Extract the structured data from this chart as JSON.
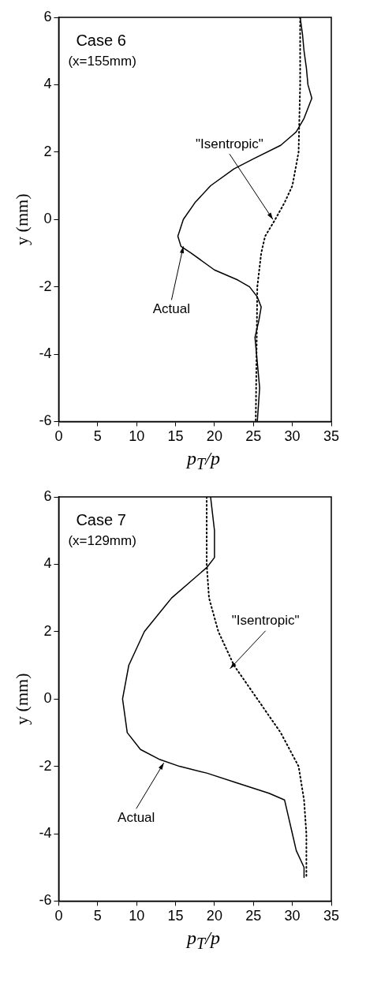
{
  "chart_data": [
    {
      "type": "line",
      "xlabel": "p$_{T}$/p",
      "ylabel": "y (mm)",
      "xlim": [
        0,
        35
      ],
      "ylim": [
        -6,
        6
      ],
      "xticks": [
        0,
        5,
        10,
        15,
        20,
        25,
        30,
        35
      ],
      "yticks": [
        -6,
        -4,
        -2,
        0,
        2,
        4,
        6
      ],
      "grid": false,
      "legend": false,
      "annotations": [
        "Case 6",
        "(x=155mm)",
        {
          "text": "\"Isentropic\"",
          "x": 27.5,
          "y": 0
        },
        {
          "text": "Actual",
          "x": 16,
          "y": -0.8
        }
      ],
      "series": [
        {
          "color": "#000000",
          "line_style": "solid",
          "x": [
            31,
            31.3,
            31.5,
            31.8,
            32,
            32.5,
            31.5,
            30.5,
            30,
            28.5,
            25,
            22.5,
            19.5,
            17.5,
            16,
            15.3,
            15.7,
            17,
            20,
            23,
            24.5,
            25.5,
            26,
            25.7,
            25.2,
            25.4,
            25.8,
            25.5
          ],
          "values": [
            6,
            5.5,
            5,
            4.5,
            4,
            3.6,
            3,
            2.6,
            2.5,
            2.2,
            1.8,
            1.5,
            1,
            0.5,
            0,
            -0.5,
            -0.8,
            -1,
            -1.5,
            -1.8,
            -2,
            -2.3,
            -2.6,
            -3,
            -3.5,
            -4,
            -5,
            -6
          ]
        },
        {
          "color": "#000000",
          "line_style": "dotted",
          "x": [
            31,
            31,
            30.8,
            30,
            29,
            27.8,
            26.5,
            26,
            25.5,
            25.4,
            25.3
          ],
          "values": [
            6,
            4,
            2,
            1,
            0.5,
            0,
            -0.5,
            -1,
            -2,
            -4,
            -6
          ]
        }
      ]
    },
    {
      "type": "line",
      "xlabel": "p$_{T}$/p",
      "ylabel": "y (mm)",
      "xlim": [
        0,
        35
      ],
      "ylim": [
        -6,
        6
      ],
      "xticks": [
        0,
        5,
        10,
        15,
        20,
        25,
        30,
        35
      ],
      "yticks": [
        -6,
        -4,
        -2,
        0,
        2,
        4,
        6
      ],
      "grid": false,
      "legend": false,
      "annotations": [
        "Case 7",
        "(x=129mm)",
        {
          "text": "\"Isentropic\"",
          "x": 22,
          "y": 0.9
        },
        {
          "text": "Actual",
          "x": 13.5,
          "y": -1.9
        }
      ],
      "series": [
        {
          "color": "#000000",
          "line_style": "solid",
          "x": [
            19.5,
            20,
            20,
            19,
            17,
            14.5,
            11,
            9,
            8.2,
            8.8,
            10.5,
            13,
            15.5,
            19,
            23,
            27,
            29,
            29.5,
            30,
            30.5,
            31.5,
            31.5
          ],
          "values": [
            6,
            5,
            4.2,
            3.9,
            3.5,
            3,
            2,
            1,
            0,
            -1,
            -1.5,
            -1.8,
            -2,
            -2.2,
            -2.5,
            -2.8,
            -3,
            -3.5,
            -4,
            -4.5,
            -5,
            -5.3
          ]
        },
        {
          "color": "#000000",
          "line_style": "dotted",
          "x": [
            19,
            19,
            19.3,
            20.5,
            22.5,
            25.5,
            28.5,
            30.8,
            31.5,
            31.8,
            31.8
          ],
          "values": [
            6,
            4,
            3,
            2,
            1,
            0,
            -1,
            -2,
            -3,
            -4,
            -5.3
          ]
        }
      ]
    }
  ]
}
